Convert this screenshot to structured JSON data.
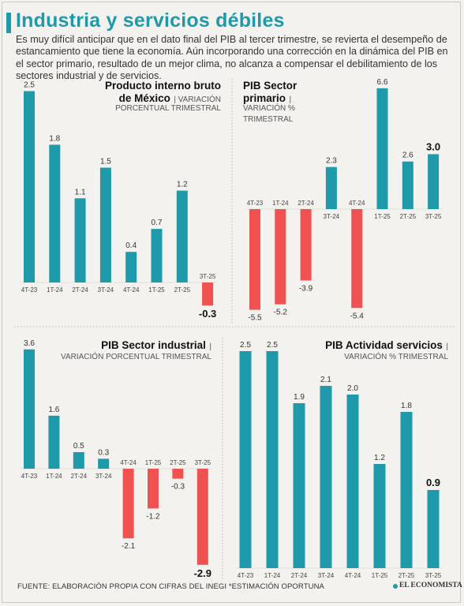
{
  "header": {
    "title": "Industria y servicios débiles",
    "subtitle": "Es muy difícil anticipar que en el dato final del PIB al tercer trimestre, se revierta el desempeño de estancamiento que tiene la economía. Aún incorporando una corrección en la dinámica del PIB en el sector primario, resultado de un mejor clima, no alcanza a compensar el debilitamiento de los sectores industrial y de servicios."
  },
  "panels": {
    "p1": {
      "title_line1": "Producto interno bruto",
      "title_line2": "de México",
      "sub_inline": "| VARIACIÓN",
      "sub": "PORCENTUAL TRIMESTRAL"
    },
    "p2": {
      "title_line1": "PIB Sector",
      "title_line2": "primario",
      "sub_inline": "|",
      "sub1": "VARIACIÓN %",
      "sub2": "TRIMESTRAL"
    },
    "p3": {
      "title": "PIB Sector industrial",
      "sub_inline": "|",
      "sub": "VARIACIÓN PORCENTUAL TRIMESTRAL"
    },
    "p4": {
      "title": "PIB Actividad servicios",
      "sub_inline": "|",
      "sub": "VARIACIÓN % TRIMESTRAL"
    }
  },
  "colors": {
    "positive": "#1f9aaa",
    "negative": "#f05252",
    "title": "#1f9aaa"
  },
  "chart_data": [
    {
      "type": "bar",
      "title": "Producto interno bruto de México",
      "subtitle": "VARIACIÓN PORCENTUAL TRIMESTRAL",
      "categories": [
        "4T-23",
        "1T-24",
        "2T-24",
        "3T-24",
        "4T-24",
        "1T-25",
        "2T-25",
        "3T-25"
      ],
      "values": [
        2.5,
        1.8,
        1.1,
        1.5,
        0.4,
        0.7,
        1.2,
        -0.3
      ],
      "labels": [
        "2.5",
        "1.8",
        "1.1",
        "1.5",
        "0.4",
        "0.7",
        "1.2",
        "-0.3"
      ],
      "highlight_last": true
    },
    {
      "type": "bar",
      "title": "PIB Sector primario",
      "subtitle": "VARIACIÓN % TRIMESTRAL",
      "categories": [
        "4T-23",
        "1T-24",
        "2T-24",
        "3T-24",
        "4T-24",
        "1T-25",
        "2T-25",
        "3T-25"
      ],
      "values": [
        -5.5,
        -5.2,
        -3.9,
        2.3,
        -5.4,
        6.6,
        2.6,
        3.0
      ],
      "labels": [
        "-5.5",
        "-5.2",
        "-3.9",
        "2.3",
        "-5.4",
        "6.6",
        "2.6",
        "3.0"
      ],
      "highlight_last": true
    },
    {
      "type": "bar",
      "title": "PIB Sector industrial",
      "subtitle": "VARIACIÓN PORCENTUAL TRIMESTRAL",
      "categories": [
        "4T-23",
        "1T-24",
        "2T-24",
        "3T-24",
        "4T-24",
        "1T-25",
        "2T-25",
        "3T-25"
      ],
      "values": [
        3.6,
        1.6,
        0.5,
        0.3,
        -2.1,
        -1.2,
        -0.3,
        -2.9
      ],
      "labels": [
        "3.6",
        "1.6",
        "0.5",
        "0.3",
        "-2.1",
        "-1.2",
        "-0.3",
        "-2.9"
      ],
      "highlight_last": true
    },
    {
      "type": "bar",
      "title": "PIB Actividad servicios",
      "subtitle": "VARIACIÓN % TRIMESTRAL",
      "categories": [
        "4T-23",
        "1T-24",
        "2T-24",
        "3T-24",
        "4T-24",
        "1T-25",
        "2T-25",
        "3T-25"
      ],
      "values": [
        2.5,
        2.5,
        1.9,
        2.1,
        2.0,
        1.2,
        1.8,
        0.9
      ],
      "labels": [
        "2.5",
        "2.5",
        "1.9",
        "2.1",
        "2.0",
        "1.2",
        "1.8",
        "0.9"
      ],
      "highlight_last": true
    }
  ],
  "footer": {
    "source": "FUENTE: ELABORACIÓN PROPIA CON CIFRAS DEL INEGI *ESTIMACIÓN OPORTUNA",
    "brand": "EL ECONOMISTA"
  }
}
